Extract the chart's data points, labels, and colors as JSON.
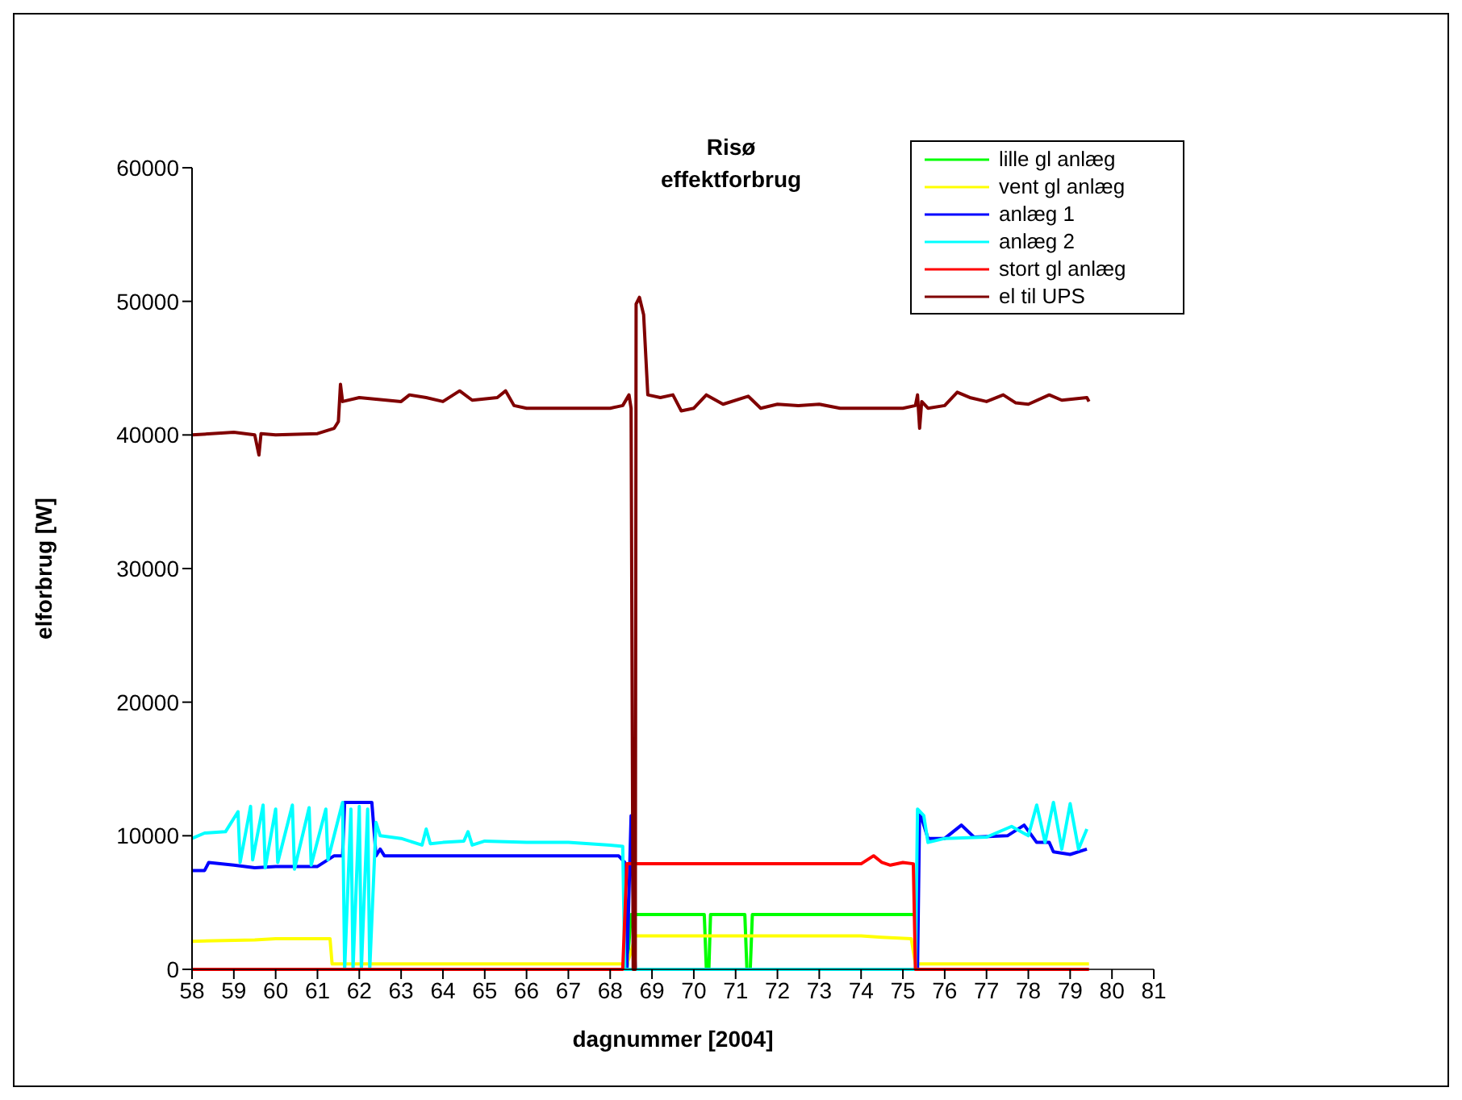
{
  "chart_data": {
    "type": "line",
    "title": "Risø",
    "subtitle": "effektforbrug",
    "xlabel": "dagnummer [2004]",
    "ylabel": "elforbrug [W]",
    "xlim": [
      58,
      81
    ],
    "xticks": [
      58,
      59,
      60,
      61,
      62,
      63,
      64,
      65,
      66,
      67,
      68,
      69,
      70,
      71,
      72,
      73,
      74,
      75,
      76,
      77,
      78,
      79,
      80,
      81
    ],
    "ylim": [
      0,
      60000
    ],
    "yticks": [
      0,
      10000,
      20000,
      30000,
      40000,
      50000,
      60000
    ],
    "grid": false,
    "legend": "top right",
    "marker": "none",
    "line_style": "solid",
    "series": [
      {
        "name": "lille gl anlæg",
        "color": "#00ff00",
        "x": [
          68.4,
          68.5,
          70.25,
          70.3,
          70.36,
          70.4,
          71.22,
          71.27,
          71.35,
          71.4,
          75.3,
          75.35
        ],
        "values": [
          0,
          4100,
          4100,
          0,
          0,
          4100,
          4100,
          0,
          0,
          4100,
          4100,
          0
        ]
      },
      {
        "name": "vent gl anlæg",
        "color": "#ffff00",
        "x": [
          58,
          59.5,
          60,
          61.3,
          61.35,
          68.4,
          68.5,
          68.6,
          74,
          74.5,
          75.2,
          75.3,
          79.45
        ],
        "values": [
          2100,
          2200,
          2300,
          2300,
          400,
          400,
          1300,
          2500,
          2500,
          2400,
          2300,
          400,
          400
        ]
      },
      {
        "name": "anlæg 1",
        "color": "#0000ff",
        "x": [
          58,
          58.3,
          58.4,
          59,
          59.5,
          60,
          61,
          61.4,
          61.6,
          61.65,
          62.3,
          62.4,
          62.5,
          62.6,
          63,
          64,
          65,
          66,
          67,
          68.2,
          68.35,
          68.4,
          68.5,
          68.6,
          75.35,
          75.4,
          75.6,
          76,
          76.4,
          76.7,
          77.5,
          77.9,
          78.2,
          78.5,
          78.6,
          79,
          79.4
        ],
        "values": [
          7400,
          7400,
          8000,
          7800,
          7600,
          7700,
          7700,
          8500,
          8500,
          12500,
          12500,
          8500,
          9000,
          8500,
          8500,
          8500,
          8500,
          8500,
          8500,
          8500,
          8000,
          0,
          11500,
          0,
          0,
          11800,
          9800,
          9800,
          10800,
          9900,
          10000,
          10800,
          9500,
          9500,
          8800,
          8600,
          9000
        ]
      },
      {
        "name": "anlæg 2",
        "color": "#00ffff",
        "x": [
          58,
          58.3,
          58.8,
          59.1,
          59.15,
          59.4,
          59.45,
          59.7,
          59.75,
          60,
          60.05,
          60.4,
          60.45,
          60.8,
          60.85,
          61.2,
          61.25,
          61.6,
          61.65,
          61.8,
          61.85,
          62,
          62.05,
          62.2,
          62.25,
          62.4,
          62.5,
          63,
          63.5,
          63.6,
          63.7,
          64,
          64.5,
          64.6,
          64.7,
          65,
          66,
          67,
          68,
          68.3,
          68.35,
          75.3,
          75.35,
          75.5,
          75.6,
          76,
          77,
          77.6,
          78,
          78.2,
          78.4,
          78.6,
          78.8,
          79,
          79.2,
          79.4
        ],
        "values": [
          9800,
          10200,
          10300,
          11800,
          8000,
          12200,
          8200,
          12300,
          7600,
          12000,
          8000,
          12300,
          7500,
          12100,
          7800,
          12000,
          8200,
          12500,
          0,
          12000,
          0,
          12200,
          0,
          12000,
          0,
          11000,
          10000,
          9800,
          9300,
          10500,
          9400,
          9500,
          9600,
          10300,
          9300,
          9600,
          9500,
          9500,
          9300,
          9200,
          0,
          0,
          12000,
          11500,
          9500,
          9800,
          9900,
          10700,
          10000,
          12300,
          9500,
          12500,
          9000,
          12400,
          9000,
          10500
        ]
      },
      {
        "name": "stort gl anlæg",
        "color": "#ff0000",
        "x": [
          58,
          68.3,
          68.4,
          70,
          74,
          74.3,
          74.5,
          74.7,
          75,
          75.25,
          75.3,
          79.45
        ],
        "values": [
          0,
          0,
          7900,
          7900,
          7900,
          8500,
          8000,
          7800,
          8000,
          7900,
          0,
          0
        ]
      },
      {
        "name": "el til UPS",
        "color": "#800000",
        "x": [
          58,
          59,
          59.5,
          59.6,
          59.65,
          60,
          61,
          61.4,
          61.5,
          61.55,
          61.6,
          62,
          63,
          63.2,
          63.6,
          64,
          64.4,
          64.7,
          65.3,
          65.5,
          65.7,
          66,
          67,
          68,
          68.3,
          68.45,
          68.5,
          68.55,
          68.6,
          68.62,
          68.7,
          68.8,
          68.9,
          69.2,
          69.5,
          69.7,
          70,
          70.3,
          70.7,
          71.3,
          71.6,
          72,
          72.5,
          73,
          73.5,
          74,
          75,
          75.3,
          75.35,
          75.4,
          75.45,
          75.6,
          76,
          76.3,
          76.6,
          77,
          77.4,
          77.7,
          78,
          78.5,
          78.8,
          79.4,
          79.45
        ],
        "values": [
          40000,
          40200,
          40000,
          38500,
          40100,
          40000,
          40100,
          40500,
          41000,
          43800,
          42500,
          42800,
          42500,
          43000,
          42800,
          42500,
          43300,
          42600,
          42800,
          43300,
          42200,
          42000,
          42000,
          42000,
          42200,
          43000,
          42000,
          0,
          0,
          49800,
          50300,
          49000,
          43000,
          42800,
          43000,
          41800,
          42000,
          43000,
          42300,
          42900,
          42000,
          42300,
          42200,
          42300,
          42000,
          42000,
          42000,
          42200,
          43000,
          40500,
          42500,
          42000,
          42200,
          43200,
          42800,
          42500,
          43000,
          42400,
          42300,
          43000,
          42600,
          42800,
          42500
        ]
      }
    ]
  }
}
